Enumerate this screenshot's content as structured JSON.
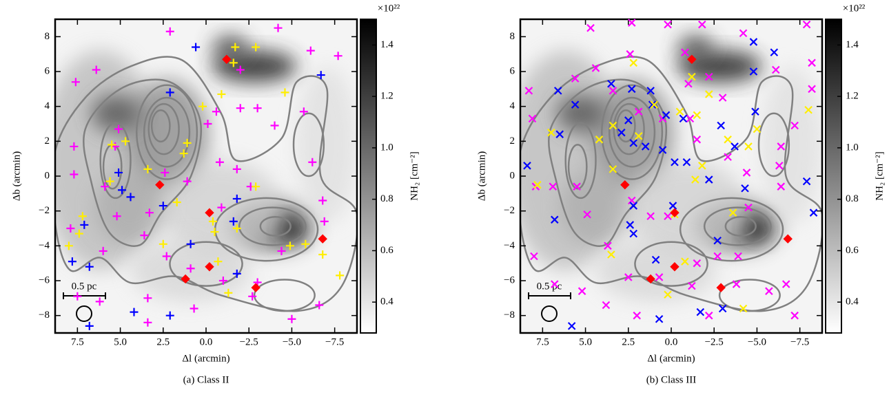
{
  "chart_data": [
    {
      "type": "scatter",
      "caption": "(a) Class II",
      "x_label": "Δl (arcmin)",
      "y_label": "Δb (arcmin)",
      "xlim": [
        8.8,
        -8.8
      ],
      "ylim": [
        -9,
        9
      ],
      "xticks": [
        7.5,
        {
          "value": 5,
          "label": "5.0"
        },
        2.5,
        {
          "value": 0,
          "label": "0.0"
        },
        {
          "value": -2.5,
          "label": "−2.5"
        },
        {
          "value": -5,
          "label": "−5.0"
        },
        {
          "value": -7.5,
          "label": "−7.5"
        }
      ],
      "yticks": [
        {
          "value": -8,
          "label": "−8"
        },
        {
          "value": -6,
          "label": "−6"
        },
        {
          "value": -4,
          "label": "−4"
        },
        {
          "value": -2,
          "label": "−2"
        },
        0,
        2,
        4,
        6,
        8
      ],
      "scale_bar_label": "0.5 pc",
      "colorbar": {
        "label": "NH₂ [cm⁻²]",
        "exponent": "×10²²",
        "lim": [
          0.28,
          1.5
        ],
        "ticks": [
          0.4,
          0.6,
          0.8,
          {
            "value": 1,
            "label": "1.0"
          },
          1.2,
          1.4
        ]
      },
      "series": [
        {
          "color": "#ff00ff",
          "marker": "plus",
          "x": [
            2.1,
            7.6,
            6.4,
            -2.0,
            -4.2,
            -6.1,
            -7.7,
            7.7,
            7.7,
            5.3,
            5.9,
            5.2,
            3.3,
            2.3,
            0.9,
            -1.0,
            -3.0,
            -4.4,
            -6.9,
            -6.6,
            -5.0,
            -2.7,
            3.4,
            3.4,
            7.5,
            7.9,
            6.0,
            1.1,
            -0.8,
            -0.6,
            -2.0,
            -3.0,
            -4.0,
            -5.7,
            -6.2,
            -6.8,
            -1.8,
            -0.1,
            2.4,
            5.1,
            3.6,
            0.7,
            -2.6,
            -0.9,
            6.2
          ],
          "y": [
            8.3,
            5.4,
            6.1,
            6.1,
            8.5,
            7.2,
            6.9,
            1.7,
            0.1,
            1.7,
            -0.6,
            -2.3,
            -2.1,
            -4.6,
            -5.3,
            -6.0,
            -6.1,
            -4.3,
            -2.6,
            -7.4,
            -8.2,
            -6.9,
            -7.0,
            -8.4,
            -6.9,
            -3.0,
            -4.3,
            -0.3,
            0.8,
            3.7,
            3.9,
            3.9,
            2.9,
            3.7,
            0.8,
            -1.4,
            0.4,
            3.0,
            0.2,
            2.7,
            -3.4,
            -7.6,
            -0.6,
            -1.8,
            -7.2
          ]
        },
        {
          "color": "#0000ff",
          "marker": "plus",
          "x": [
            0.6,
            2.1,
            5.1,
            4.9,
            4.4,
            7.1,
            7.8,
            6.8,
            2.5,
            -1.6,
            -1.8,
            -1.8,
            -6.7,
            6.8,
            4.2,
            2.1,
            0.9
          ],
          "y": [
            7.4,
            4.8,
            0.2,
            -0.8,
            -1.2,
            -2.8,
            -4.9,
            -5.2,
            -1.7,
            -2.6,
            -1.3,
            -5.6,
            5.8,
            -8.6,
            -7.8,
            -8.0,
            -3.9
          ]
        },
        {
          "color": "#ffee00",
          "marker": "plus",
          "x": [
            -1.7,
            -2.9,
            -1.6,
            -0.9,
            0.2,
            -4.6,
            5.5,
            4.7,
            1.1,
            1.3,
            3.4,
            5.6,
            7.2,
            7.4,
            8.0,
            1.7,
            -0.4,
            -0.5,
            -1.8,
            -2.9,
            -0.7,
            -1.3,
            -4.9,
            -5.8,
            -6.8,
            -7.8,
            2.5
          ],
          "y": [
            7.4,
            7.4,
            6.5,
            4.7,
            4.0,
            4.8,
            1.8,
            2.0,
            1.9,
            1.3,
            0.4,
            -0.3,
            -2.3,
            -3.3,
            -4.0,
            -1.5,
            -2.6,
            -3.2,
            -3.0,
            -0.6,
            -4.9,
            -6.7,
            -4.0,
            -3.9,
            -4.5,
            -5.7,
            -3.9
          ]
        },
        {
          "color": "#ff0000",
          "marker": "diamond",
          "x": [
            -1.2,
            2.7,
            -0.2,
            -0.2,
            1.2,
            -2.9,
            -6.8
          ],
          "y": [
            6.7,
            -0.5,
            -2.1,
            -5.2,
            -5.9,
            -6.4,
            -3.6
          ]
        }
      ]
    },
    {
      "type": "scatter",
      "caption": "(b) Class III",
      "x_label": "Δl (arcmin)",
      "y_label": "Δb (arcmin)",
      "xlim": [
        8.8,
        -8.8
      ],
      "ylim": [
        -9,
        9
      ],
      "xticks": [
        7.5,
        {
          "value": 5,
          "label": "5.0"
        },
        2.5,
        {
          "value": 0,
          "label": "0.0"
        },
        {
          "value": -2.5,
          "label": "−2.5"
        },
        {
          "value": -5,
          "label": "−5.0"
        },
        {
          "value": -7.5,
          "label": "−7.5"
        }
      ],
      "yticks": [
        {
          "value": -8,
          "label": "−8"
        },
        {
          "value": -6,
          "label": "−6"
        },
        {
          "value": -4,
          "label": "−4"
        },
        {
          "value": -2,
          "label": "−2"
        },
        0,
        2,
        4,
        6,
        8
      ],
      "scale_bar_label": "0.5 pc",
      "colorbar": {
        "label": "NH₂ [cm⁻²]",
        "exponent": "×10²²",
        "lim": [
          0.28,
          1.5
        ],
        "ticks": [
          0.4,
          0.6,
          0.8,
          {
            "value": 1,
            "label": "1.0"
          },
          1.2,
          1.4
        ]
      },
      "series": [
        {
          "color": "#ff00ff",
          "marker": "cross",
          "x": [
            4.7,
            2.3,
            0.2,
            -1.8,
            -4.2,
            -7.9,
            5.6,
            4.4,
            2.4,
            -0.8,
            -6.1,
            -8.2,
            -8.2,
            -7.2,
            -6.3,
            -6.4,
            8.3,
            8.1,
            7.9,
            6.9,
            5.5,
            8.0,
            6.8,
            5.2,
            3.7,
            2.5,
            2.0,
            2.3,
            0.7,
            -1.2,
            -2.2,
            -2.7,
            -3.9,
            -3.8,
            -5.7,
            -7.2,
            -6.7,
            -4.5,
            -4.4,
            -6.4,
            -3.3,
            -1.5,
            -1.1,
            0.5,
            1.9,
            3.4,
            -1.0,
            -2.2,
            -3.0,
            4.9,
            1.2,
            0.2,
            -1.5,
            3.8
          ],
          "y": [
            8.5,
            8.8,
            8.7,
            8.7,
            8.2,
            8.7,
            5.6,
            6.2,
            7.0,
            7.1,
            6.1,
            6.5,
            5.0,
            2.9,
            0.6,
            -0.6,
            4.9,
            3.3,
            -0.6,
            -0.6,
            -0.6,
            -4.6,
            -6.2,
            -6.6,
            -4.0,
            -5.8,
            -8.0,
            -1.4,
            -5.8,
            -6.3,
            -8.0,
            -4.6,
            -4.6,
            -6.2,
            -6.6,
            -8.0,
            -6.2,
            -1.8,
            0.2,
            1.7,
            1.1,
            2.1,
            3.3,
            3.3,
            3.7,
            4.9,
            5.3,
            5.7,
            4.5,
            -2.2,
            -2.3,
            -2.3,
            -5.0,
            -7.4
          ]
        },
        {
          "color": "#0000ff",
          "marker": "cross",
          "x": [
            6.6,
            5.6,
            8.4,
            6.5,
            3.5,
            2.3,
            1.2,
            1.1,
            0.3,
            -0.7,
            2.5,
            2.9,
            2.2,
            1.5,
            0.5,
            -0.2,
            -0.9,
            -2.9,
            -4.8,
            -4.8,
            -6.0,
            -4.9,
            -3.7,
            -2.2,
            -4.3,
            2.2,
            2.4,
            2.2,
            0.9,
            -0.1,
            -2.7,
            -3.0,
            6.8,
            0.7,
            -1.7,
            -7.9,
            -8.3,
            5.8
          ],
          "y": [
            4.9,
            4.1,
            0.6,
            2.4,
            5.3,
            5.0,
            4.9,
            4.1,
            3.5,
            3.3,
            3.2,
            2.5,
            1.9,
            1.7,
            1.5,
            0.8,
            0.8,
            2.9,
            7.7,
            6.0,
            7.1,
            3.7,
            1.7,
            -0.2,
            -0.7,
            -1.7,
            -2.8,
            -3.3,
            -4.8,
            -1.7,
            -3.7,
            -7.6,
            -2.5,
            -8.2,
            -7.8,
            -0.3,
            -2.1,
            -8.6
          ]
        },
        {
          "color": "#ffee00",
          "marker": "cross",
          "x": [
            2.2,
            -1.2,
            -2.2,
            1.0,
            3.4,
            4.2,
            1.9,
            -0.5,
            -1.5,
            -3.3,
            -4.5,
            -5.0,
            -1.8,
            -1.4,
            3.4,
            7.8,
            7.0,
            -8.0,
            -3.6,
            -0.2,
            0.2,
            -0.8,
            3.5,
            -4.2
          ],
          "y": [
            6.5,
            5.7,
            4.7,
            4.1,
            2.9,
            2.1,
            2.3,
            3.7,
            3.5,
            2.1,
            1.7,
            2.7,
            0.6,
            -0.2,
            0.4,
            -0.5,
            2.5,
            3.8,
            -2.1,
            -2.2,
            -6.8,
            -4.9,
            -4.5,
            -7.6
          ]
        },
        {
          "color": "#ff0000",
          "marker": "diamond",
          "x": [
            -1.2,
            2.7,
            -0.2,
            -0.2,
            1.2,
            -2.9,
            -6.8
          ],
          "y": [
            6.7,
            -0.5,
            -2.1,
            -5.2,
            -5.9,
            -6.4,
            -3.6
          ]
        }
      ]
    }
  ]
}
